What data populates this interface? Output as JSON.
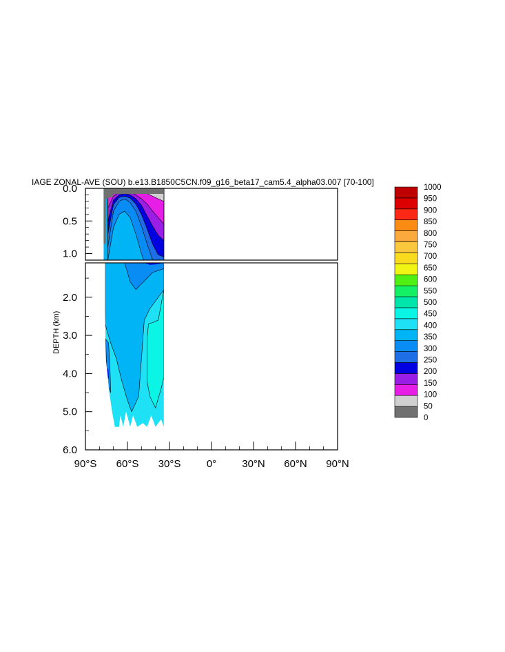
{
  "title": "IAGE ZONAL-AVE (SOU) b.e13.B1850C5CN.f09_g16_beta17_cam5.4_alpha03.007 [70-100]",
  "chart_data": {
    "type": "contour",
    "title": "IAGE ZONAL-AVE (SOU) b.e13.B1850C5CN.f09_g16_beta17_cam5.4_alpha03.007 [70-100]",
    "ylabel": "DEPTH (km)",
    "xlabel": "",
    "x_range": [
      -90,
      90
    ],
    "y_range": [
      0,
      6
    ],
    "y_reversed": true,
    "upper_panel_y_range": [
      0,
      1.1
    ],
    "lower_panel_y_range": [
      1.1,
      6
    ],
    "x_ticks": [
      "90°S",
      "60°S",
      "30°S",
      "0°",
      "30°N",
      "60°N",
      "90°N"
    ],
    "y_ticks_upper": [
      "0.0",
      "0.5",
      "1.0"
    ],
    "y_ticks_lower": [
      "2.0",
      "3.0",
      "4.0",
      "5.0",
      "6.0"
    ],
    "data_extent": {
      "lat_min": -77,
      "lat_max": -34,
      "max_depth": 5.4
    },
    "colorbar": {
      "labels": [
        "0",
        "50",
        "100",
        "150",
        "200",
        "250",
        "300",
        "350",
        "400",
        "450",
        "500",
        "550",
        "600",
        "650",
        "700",
        "750",
        "800",
        "850",
        "900",
        "950",
        "1000"
      ],
      "colors": [
        "#707070",
        "#d0d0d0",
        "#e61ee6",
        "#9b1ee6",
        "#0000e1",
        "#1e6ee6",
        "#0a8cf5",
        "#00b4f5",
        "#1ee1f5",
        "#0af5e6",
        "#00e6aa",
        "#14f064",
        "#50f014",
        "#f0f514",
        "#fadc1e",
        "#fac83c",
        "#faaa3c",
        "#fa8c14",
        "#fa2814",
        "#dc0000",
        "#be0000"
      ]
    },
    "level_depths_at_lat": {
      "latitudes": [
        -74,
        -70,
        -66,
        -62,
        -58,
        -54,
        -50,
        -46,
        -42,
        -38,
        -34
      ],
      "iage_50": [
        0.12,
        0.06,
        0.03,
        0.02,
        0.02,
        0.03,
        0.05,
        0.08,
        0.12,
        0.16,
        0.2
      ],
      "iage_100": [
        0.3,
        0.12,
        0.06,
        0.05,
        0.06,
        0.1,
        0.16,
        0.24,
        0.35,
        0.45,
        0.55
      ],
      "iage_150": [
        0.5,
        0.18,
        0.1,
        0.08,
        0.1,
        0.16,
        0.26,
        0.42,
        0.58,
        0.72,
        0.8
      ],
      "iage_200": [
        0.7,
        0.25,
        0.14,
        0.12,
        0.15,
        0.24,
        0.4,
        0.62,
        0.86,
        1.02,
        1.05
      ],
      "iage_250": [
        0.9,
        0.35,
        0.2,
        0.16,
        0.22,
        0.35,
        0.58,
        0.85,
        1.1,
        1.2,
        1.15
      ],
      "iage_300": [
        1.1,
        0.6,
        0.4,
        0.35,
        0.45,
        0.7,
        1.0,
        1.25,
        1.45,
        1.5,
        1.4
      ]
    }
  }
}
